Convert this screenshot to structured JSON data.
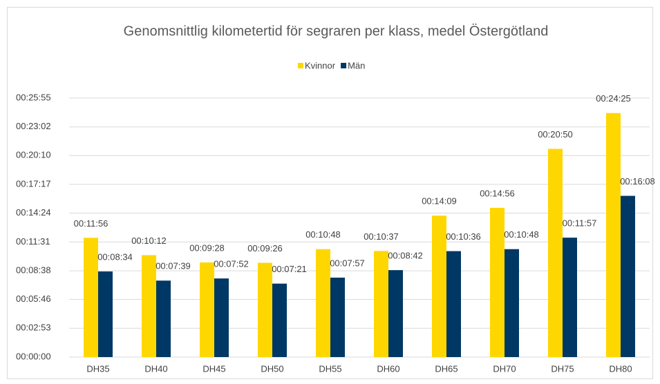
{
  "chart_data": {
    "type": "bar",
    "title": "Genomsnittlig kilometertid för segraren per klass, medel Östergötland",
    "categories": [
      "DH35",
      "DH40",
      "DH45",
      "DH50",
      "DH55",
      "DH60",
      "DH65",
      "DH70",
      "DH75",
      "DH80"
    ],
    "series": [
      {
        "name": "Kvinnor",
        "color": "#ffd700",
        "values": [
          716,
          612,
          568,
          566,
          648,
          637,
          849,
          896,
          1250,
          1465
        ],
        "value_labels": [
          "00:11:56",
          "00:10:12",
          "00:09:28",
          "00:09:26",
          "00:10:48",
          "00:10:37",
          "00:14:09",
          "00:14:56",
          "00:20:50",
          "00:24:25"
        ]
      },
      {
        "name": "Män",
        "color": "#003865",
        "values": [
          514,
          459,
          472,
          441,
          477,
          522,
          636,
          648,
          717,
          968
        ],
        "value_labels": [
          "00:08:34",
          "00:07:39",
          "00:07:52",
          "00:07:21",
          "00:07:57",
          "00:08:42",
          "00:10:36",
          "00:10:48",
          "00:11:57",
          "00:16:08"
        ]
      }
    ],
    "ylim": [
      0,
      1555
    ],
    "yticks": [
      {
        "value": 0,
        "label": "00:00:00"
      },
      {
        "value": 173,
        "label": "00:02:53"
      },
      {
        "value": 346,
        "label": "00:05:46"
      },
      {
        "value": 518,
        "label": "00:08:38"
      },
      {
        "value": 691,
        "label": "00:11:31"
      },
      {
        "value": 864,
        "label": "00:14:24"
      },
      {
        "value": 1037,
        "label": "00:17:17"
      },
      {
        "value": 1210,
        "label": "00:20:10"
      },
      {
        "value": 1382,
        "label": "00:23:02"
      },
      {
        "value": 1555,
        "label": "00:25:55"
      }
    ],
    "grid": true,
    "legend": "top"
  }
}
